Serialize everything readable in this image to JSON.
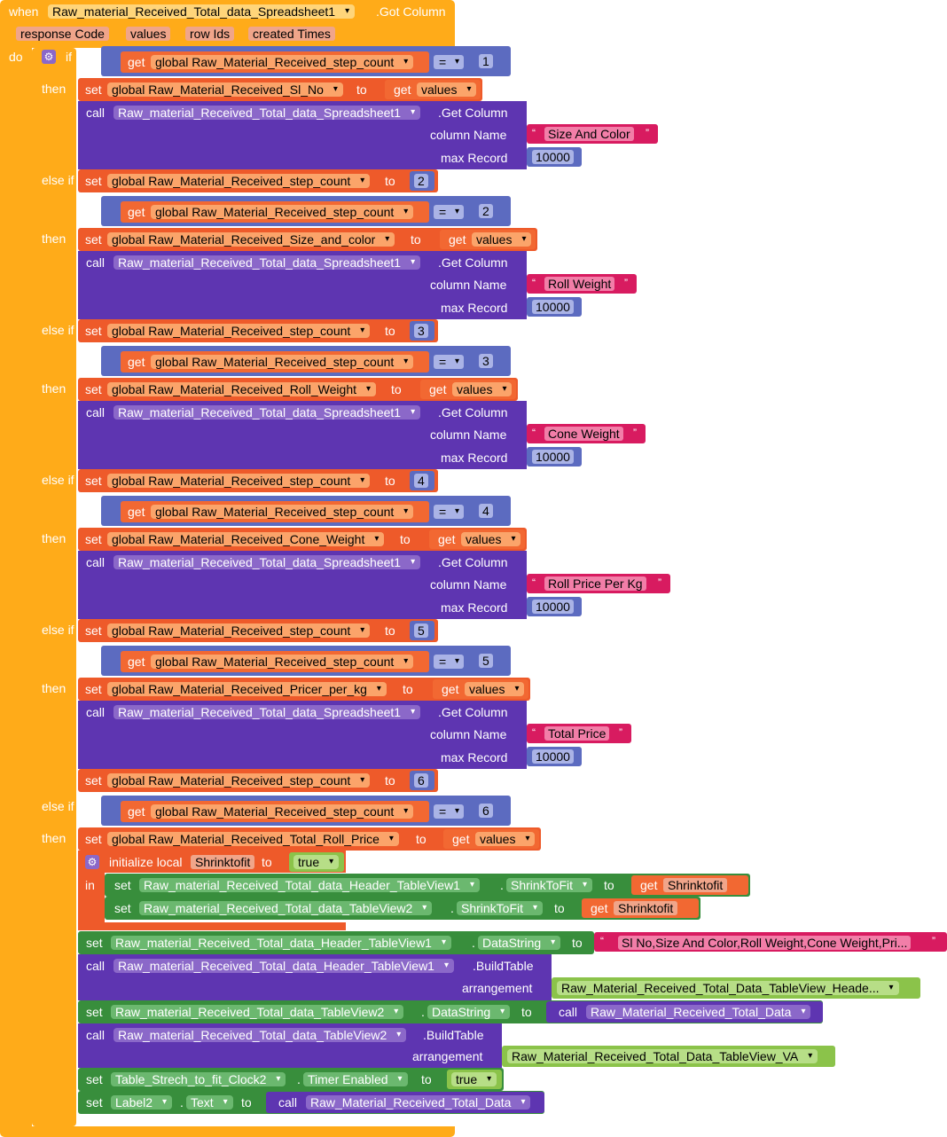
{
  "event": {
    "when": "when",
    "component": "Raw_material_Received_Total_data_Spreadsheet1",
    "event_name": ".Got Column",
    "params": [
      "response Code",
      "values",
      "row Ids",
      "created Times"
    ],
    "do": "do"
  },
  "kw": {
    "if": "if",
    "then": "then",
    "elseif": "else if",
    "get": "get",
    "set": "set",
    "to": "to",
    "call": "call",
    "column_name": "column Name",
    "max_record": "max Record",
    "eq": "=",
    "open_q": "“",
    "close_q": "”",
    "init_local": "initialize local",
    "in": "in",
    "dot": ".",
    "arrangement": "arrangement",
    "getcol": ".Get Column",
    "buildtable": ".BuildTable"
  },
  "branches": [
    {
      "cond_var": "global Raw_Material_Received_step_count",
      "cond_num": "1",
      "set_var": "global Raw_Material_Received_Sl_No",
      "get_var": "values",
      "column": "Size And Color",
      "max": "10000",
      "next_var": "global Raw_Material_Received_step_count",
      "next_num": "2"
    },
    {
      "cond_var": "global Raw_Material_Received_step_count",
      "cond_num": "2",
      "set_var": "global Raw_Material_Received_Size_and_color",
      "get_var": "values",
      "column": "Roll Weight",
      "max": "10000",
      "next_var": "global Raw_Material_Received_step_count",
      "next_num": "3"
    },
    {
      "cond_var": "global Raw_Material_Received_step_count",
      "cond_num": "3",
      "set_var": "global Raw_Material_Received_Roll_Weight",
      "get_var": "values",
      "column": "Cone Weight",
      "max": "10000",
      "next_var": "global Raw_Material_Received_step_count",
      "next_num": "4"
    },
    {
      "cond_var": "global Raw_Material_Received_step_count",
      "cond_num": "4",
      "set_var": "global Raw_Material_Received_Cone_Weight",
      "get_var": "values",
      "column": "Roll Price Per Kg",
      "max": "10000",
      "next_var": "global Raw_Material_Received_step_count",
      "next_num": "5"
    },
    {
      "cond_var": "global Raw_Material_Received_step_count",
      "cond_num": "5",
      "set_var": "global Raw_Material_Received_Pricer_per_kg",
      "get_var": "values",
      "column": "Total Price",
      "max": "10000",
      "next_var": "global Raw_Material_Received_step_count",
      "next_num": "6"
    }
  ],
  "last": {
    "cond_var": "global Raw_Material_Received_step_count",
    "cond_num": "6",
    "set_var": "global Raw_Material_Received_Total_Roll_Price",
    "get_var": "values",
    "local_name": "Shrinktofit",
    "local_val": "true",
    "s1_comp": "Raw_material_Received_Total_data_Header_TableView1",
    "s1_prop": "ShrinkToFit",
    "s1_get": "Shrinktofit",
    "s2_comp": "Raw_material_Received_Total_data_TableView2",
    "s2_prop": "ShrinkToFit",
    "s2_get": "Shrinktofit",
    "s3_comp": "Raw_material_Received_Total_data_Header_TableView1",
    "s3_prop": "DataString",
    "s3_text": "Sl No,Size And Color,Roll Weight,Cone Weight,Pri...",
    "c1_comp": "Raw_material_Received_Total_data_Header_TableView1",
    "c1_arr": "Raw_Material_Received_Total_Data_TableView_Heade...",
    "s4_comp": "Raw_material_Received_Total_data_TableView2",
    "s4_prop": "DataString",
    "s4_proc": "Raw_Material_Received_Total_Data",
    "c2_comp": "Raw_material_Received_Total_data_TableView2",
    "c2_arr": "Raw_Material_Received_Total_Data_TableView_VA",
    "s5_comp": "Table_Strech_to_fit_Clock2",
    "s5_prop": "Timer Enabled",
    "s5_val": "true",
    "s6_comp": "Label2",
    "s6_prop": "Text",
    "s6_proc": "Raw_Material_Received_Total_Data"
  },
  "colors": {
    "control": "#ffab19",
    "variable": "#ee5a2a",
    "procedure": "#5e35b1",
    "math": "#5c6bc0",
    "text": "#d81b60",
    "component": "#388e3c",
    "logic": "#8bc34a"
  },
  "icons": [
    "gear-icon",
    "dropdown-arrow-icon"
  ]
}
